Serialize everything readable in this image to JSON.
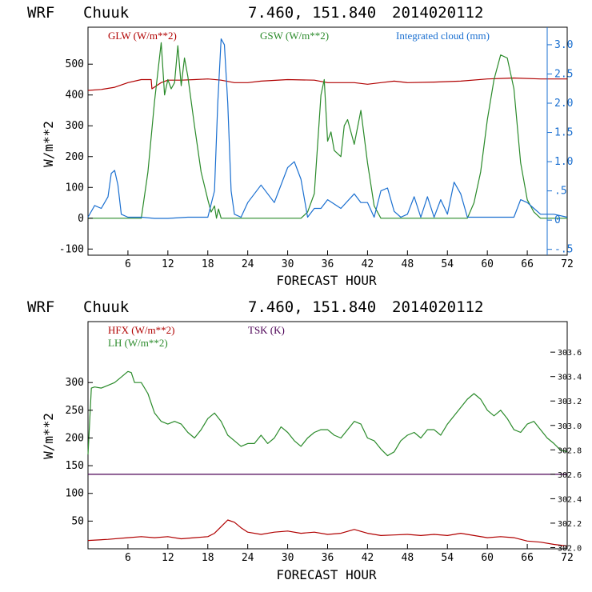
{
  "chart_data": [
    {
      "type": "line",
      "header": {
        "model": "WRF",
        "location": "Chuuk",
        "coords": "7.460, 151.840",
        "init": "2014020112"
      },
      "xlabel": "FORECAST HOUR",
      "ylabel": "W/m**2",
      "xlim": [
        0,
        72
      ],
      "ylim": [
        -120,
        620
      ],
      "xticks": [
        6,
        12,
        18,
        24,
        30,
        36,
        42,
        48,
        54,
        60,
        66,
        72
      ],
      "yticks": [
        -100,
        0,
        100,
        200,
        300,
        400,
        500
      ],
      "y2lim": [
        -0.6,
        3.3
      ],
      "y2ticks": [
        -0.5,
        0,
        0.5,
        1.0,
        1.5,
        2.0,
        2.5,
        3.0
      ],
      "y2ticklabels": [
        "-.5",
        "0",
        ".5",
        "1.0",
        "1.5",
        "2.0",
        "2.5",
        "3.0"
      ],
      "series": [
        {
          "name": "GLW (W/m**2)",
          "axis": "left",
          "color": "#b00000",
          "x": [
            0,
            2,
            4,
            6,
            8,
            9.5,
            9.6,
            11,
            12,
            14,
            16,
            18,
            20,
            22,
            24,
            26,
            30,
            34,
            36,
            40,
            42,
            44,
            46,
            48,
            52,
            56,
            60,
            64,
            68,
            72
          ],
          "y": [
            415,
            418,
            425,
            440,
            450,
            450,
            420,
            440,
            448,
            448,
            450,
            452,
            448,
            440,
            440,
            445,
            450,
            448,
            440,
            440,
            435,
            440,
            445,
            440,
            442,
            445,
            452,
            455,
            452,
            452
          ]
        },
        {
          "name": "GSW (W/m**2)",
          "axis": "left",
          "color": "#2a8a2a",
          "x": [
            0,
            8,
            9,
            10,
            11,
            11.5,
            12,
            12.5,
            13,
            13.5,
            14,
            14.5,
            15,
            16,
            17,
            18,
            18.5,
            19,
            19.3,
            19.6,
            20,
            22,
            24,
            26,
            28,
            31,
            32,
            33,
            34,
            35,
            35.5,
            36,
            36.5,
            37,
            38,
            38.5,
            39,
            40,
            41,
            42,
            43,
            44,
            46,
            50,
            54,
            57,
            58,
            59,
            60,
            61,
            62,
            63,
            64,
            65,
            66,
            67,
            68,
            70,
            72
          ],
          "y": [
            0,
            0,
            150,
            380,
            570,
            400,
            450,
            420,
            440,
            560,
            430,
            520,
            460,
            300,
            150,
            60,
            20,
            40,
            0,
            30,
            0,
            0,
            0,
            0,
            0,
            0,
            0,
            20,
            80,
            400,
            450,
            250,
            280,
            220,
            200,
            300,
            320,
            240,
            350,
            180,
            40,
            0,
            0,
            0,
            0,
            0,
            50,
            150,
            320,
            450,
            530,
            520,
            420,
            180,
            60,
            20,
            0,
            0,
            0
          ]
        },
        {
          "name": "Integrated cloud (mm)",
          "axis": "right",
          "color": "#1a6fd0",
          "x": [
            0,
            1,
            2,
            3,
            3.5,
            4,
            4.5,
            5,
            6,
            8,
            10,
            12,
            15,
            18,
            19,
            19.5,
            20,
            20.5,
            21,
            21.5,
            22,
            23,
            24,
            26,
            28,
            30,
            31,
            32,
            33,
            34,
            35,
            36,
            38,
            40,
            41,
            42,
            43,
            44,
            45,
            46,
            47,
            48,
            49,
            50,
            51,
            52,
            53,
            54,
            55,
            56,
            57,
            58,
            59,
            60,
            62,
            64,
            65,
            66,
            67,
            68,
            70,
            72
          ],
          "y": [
            0.05,
            0.25,
            0.2,
            0.4,
            0.8,
            0.85,
            0.6,
            0.1,
            0.05,
            0.05,
            0.03,
            0.03,
            0.05,
            0.05,
            0.5,
            2.0,
            3.1,
            3.0,
            2.0,
            0.5,
            0.1,
            0.05,
            0.3,
            0.6,
            0.3,
            0.9,
            1.0,
            0.7,
            0.05,
            0.2,
            0.2,
            0.35,
            0.2,
            0.45,
            0.3,
            0.3,
            0.05,
            0.5,
            0.55,
            0.15,
            0.05,
            0.1,
            0.4,
            0.05,
            0.4,
            0.05,
            0.35,
            0.1,
            0.65,
            0.45,
            0.05,
            0.05,
            0.05,
            0.05,
            0.05,
            0.05,
            0.35,
            0.3,
            0.2,
            0.1,
            0.1,
            0.05
          ]
        }
      ]
    },
    {
      "type": "line",
      "header": {
        "model": "WRF",
        "location": "Chuuk",
        "coords": "7.460, 151.840",
        "init": "2014020112"
      },
      "xlabel": "FORECAST HOUR",
      "ylabel": "W/m**2",
      "xlim": [
        0,
        72
      ],
      "ylim": [
        0,
        410
      ],
      "xticks": [
        6,
        12,
        18,
        24,
        30,
        36,
        42,
        48,
        54,
        60,
        66,
        72
      ],
      "yticks": [
        50,
        100,
        150,
        200,
        250,
        300
      ],
      "y2lim": [
        301.99,
        303.85
      ],
      "y2ticks": [
        302.0,
        302.2,
        302.4,
        302.6,
        302.8,
        303.0,
        303.2,
        303.4,
        303.6
      ],
      "y2ticklabels": [
        "302.0",
        "302.2",
        "302.4",
        "302.6",
        "302.8",
        "303.0",
        "303.2",
        "303.4",
        "303.6"
      ],
      "series": [
        {
          "name": "HFX (W/m**2)",
          "axis": "left",
          "color": "#b00000",
          "x": [
            0,
            3,
            6,
            8,
            10,
            12,
            14,
            16,
            18,
            19,
            20,
            21,
            22,
            23,
            24,
            26,
            28,
            30,
            32,
            34,
            36,
            38,
            40,
            42,
            44,
            46,
            48,
            50,
            52,
            54,
            56,
            58,
            60,
            62,
            64,
            66,
            68,
            70,
            72
          ],
          "y": [
            15,
            17,
            20,
            22,
            20,
            22,
            18,
            20,
            22,
            28,
            40,
            52,
            48,
            38,
            30,
            26,
            30,
            32,
            28,
            30,
            26,
            28,
            35,
            28,
            24,
            25,
            26,
            24,
            26,
            24,
            28,
            24,
            20,
            22,
            20,
            14,
            12,
            8,
            5
          ]
        },
        {
          "name": "LH  (W/m**2)",
          "axis": "left",
          "color": "#2a8a2a",
          "x": [
            0,
            0.5,
            1,
            2,
            3,
            4,
            5,
            6,
            6.5,
            7,
            8,
            9,
            10,
            11,
            12,
            13,
            14,
            15,
            16,
            17,
            18,
            19,
            20,
            21,
            22,
            23,
            24,
            25,
            26,
            27,
            28,
            29,
            30,
            31,
            32,
            33,
            34,
            35,
            36,
            37,
            38,
            39,
            40,
            41,
            42,
            43,
            44,
            45,
            46,
            47,
            48,
            49,
            50,
            51,
            52,
            53,
            54,
            55,
            56,
            57,
            58,
            59,
            60,
            61,
            62,
            63,
            64,
            65,
            66,
            67,
            68,
            69,
            70,
            71,
            72
          ],
          "y": [
            170,
            290,
            292,
            290,
            295,
            300,
            310,
            320,
            318,
            300,
            300,
            280,
            245,
            230,
            225,
            230,
            225,
            210,
            200,
            215,
            235,
            245,
            230,
            205,
            195,
            185,
            190,
            190,
            205,
            190,
            200,
            220,
            210,
            195,
            185,
            200,
            210,
            215,
            215,
            205,
            200,
            215,
            230,
            225,
            200,
            195,
            180,
            168,
            175,
            195,
            205,
            210,
            200,
            215,
            215,
            205,
            225,
            240,
            255,
            270,
            280,
            270,
            250,
            240,
            250,
            235,
            215,
            210,
            225,
            230,
            215,
            200,
            190,
            178,
            175
          ]
        },
        {
          "name": "TSK (K)",
          "axis": "right",
          "color": "#4b0055",
          "x": [
            0,
            72
          ],
          "y": [
            302.6,
            302.6
          ]
        }
      ]
    }
  ]
}
